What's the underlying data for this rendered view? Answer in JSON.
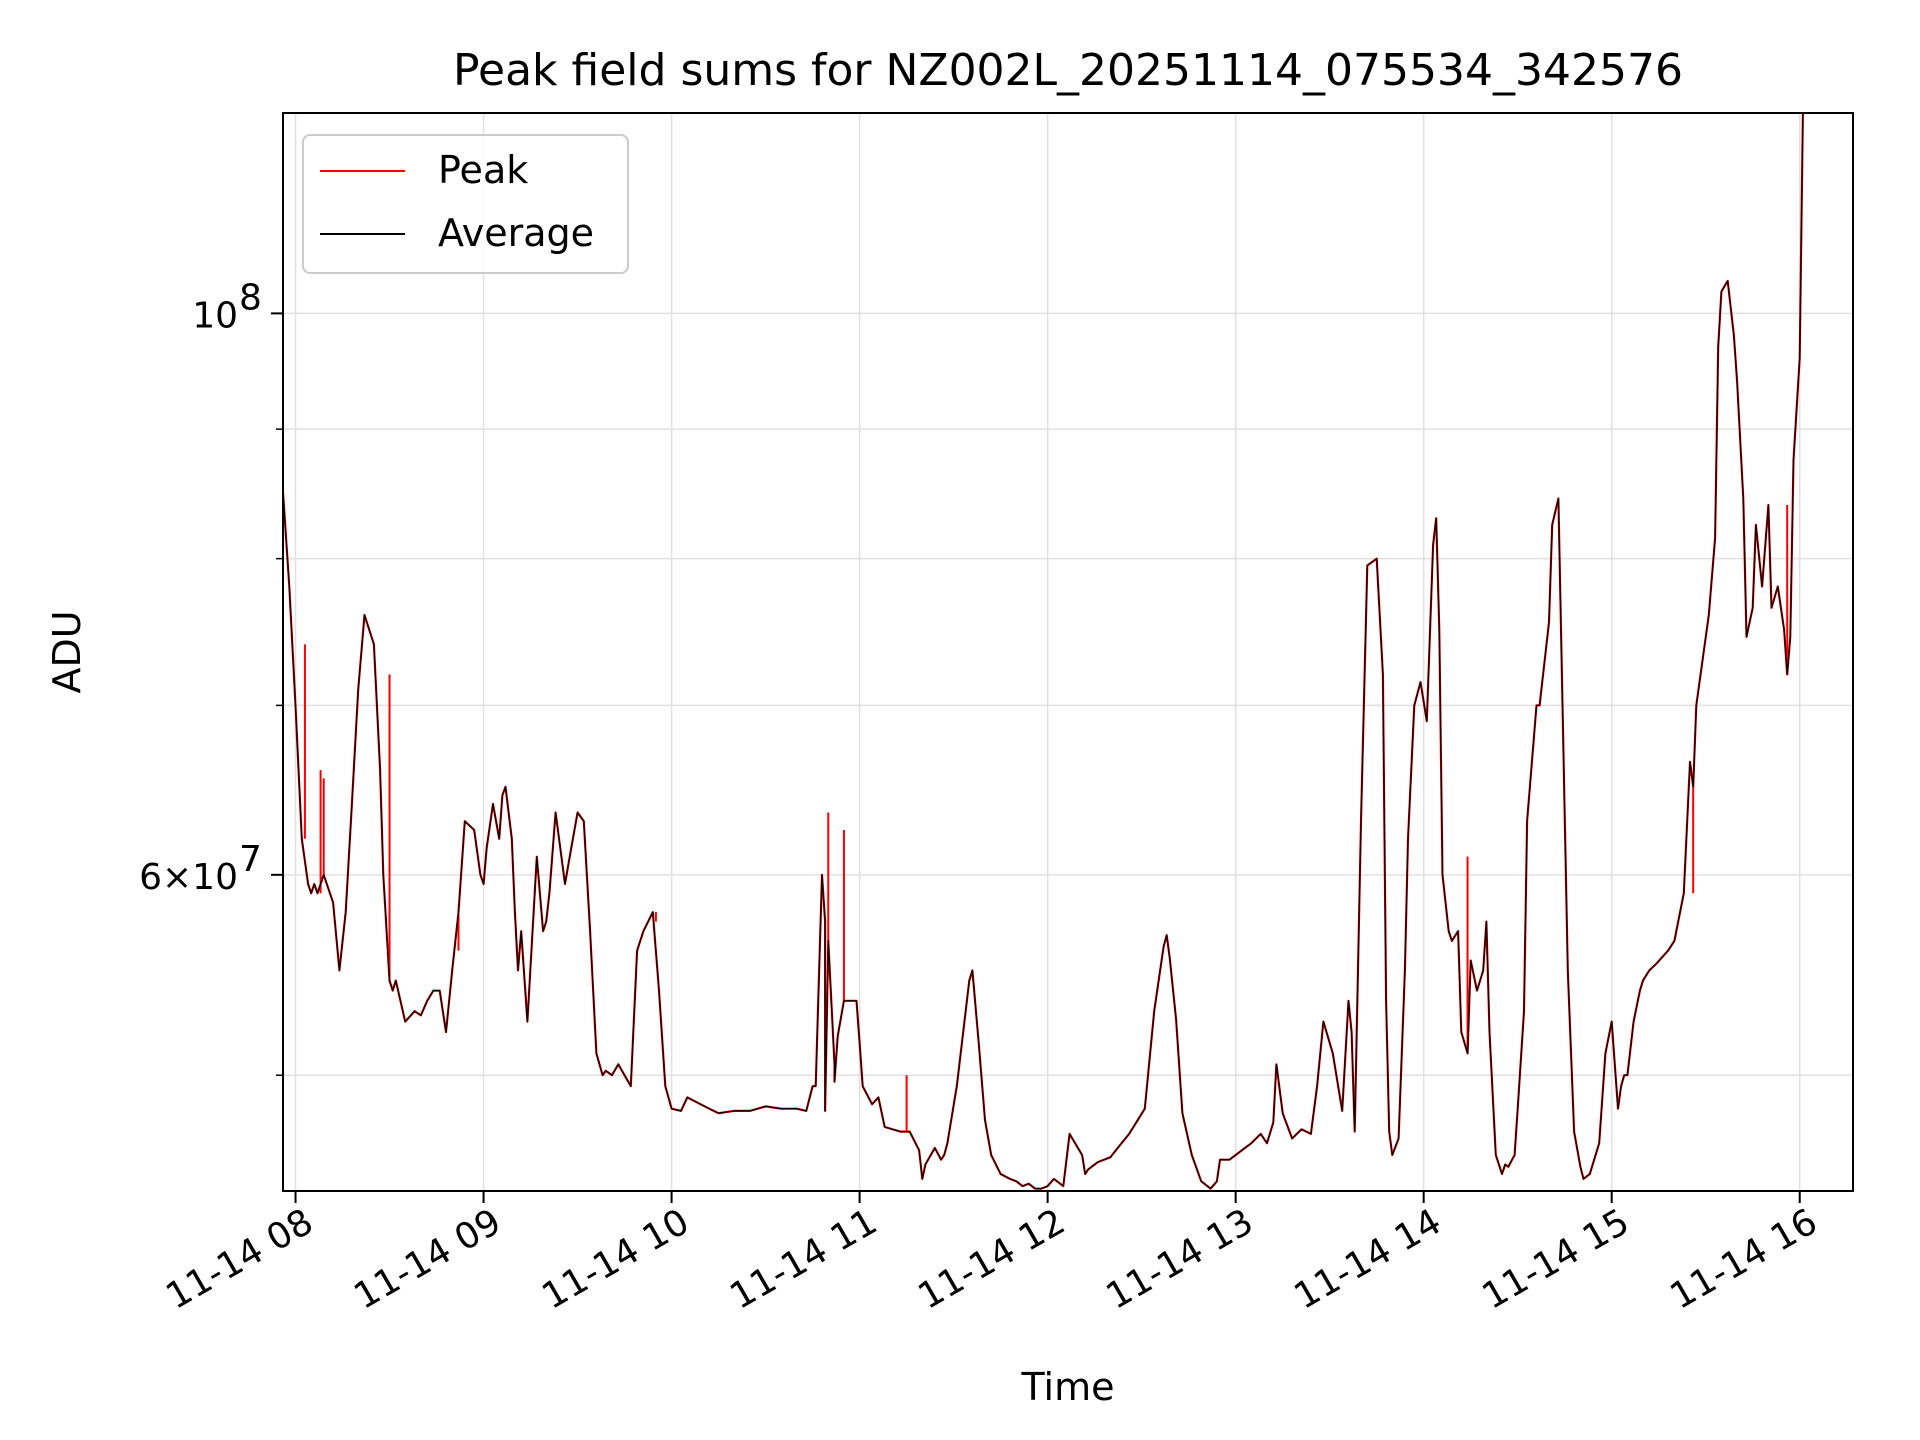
{
  "chart_data": {
    "type": "line",
    "title": "Peak field sums for NZ002L_20251114_075534_342576",
    "xlabel": "Time",
    "ylabel": "ADU",
    "yscale": "log",
    "ylim": [
      45000000,
      120000000
    ],
    "xlim": [
      "2025-11-14T07:56",
      "2025-11-14T16:17"
    ],
    "x_ticks": [
      {
        "label": "11-14 08",
        "value": "2025-11-14T08:00"
      },
      {
        "label": "11-14 09",
        "value": "2025-11-14T09:00"
      },
      {
        "label": "11-14 10",
        "value": "2025-11-14T10:00"
      },
      {
        "label": "11-14 11",
        "value": "2025-11-14T11:00"
      },
      {
        "label": "11-14 12",
        "value": "2025-11-14T12:00"
      },
      {
        "label": "11-14 13",
        "value": "2025-11-14T13:00"
      },
      {
        "label": "11-14 14",
        "value": "2025-11-14T14:00"
      },
      {
        "label": "11-14 15",
        "value": "2025-11-14T15:00"
      },
      {
        "label": "11-14 16",
        "value": "2025-11-14T16:00"
      }
    ],
    "y_ticks_major": [
      {
        "value": 100000000,
        "base": "10",
        "exp": "8"
      },
      {
        "value": 60000000,
        "prefix": "6×10",
        "exp": "7"
      }
    ],
    "y_ticks_minor": [
      50000000,
      70000000,
      80000000,
      90000000
    ],
    "grid": true,
    "legend": {
      "location": "upper-left"
    },
    "series": [
      {
        "name": "Peak",
        "color": "#ff0000",
        "line_width": 1.2,
        "spikes": [
          {
            "t": "2025-11-14T08:03",
            "v": 74000000
          },
          {
            "t": "2025-11-14T08:08",
            "v": 66000000
          },
          {
            "t": "2025-11-14T08:09",
            "v": 65500000
          },
          {
            "t": "2025-11-14T08:30",
            "v": 72000000
          },
          {
            "t": "2025-11-14T08:52",
            "v": 56000000
          },
          {
            "t": "2025-11-14T09:06",
            "v": 64500000
          },
          {
            "t": "2025-11-14T09:55",
            "v": 57500000
          },
          {
            "t": "2025-11-14T10:50",
            "v": 63500000
          },
          {
            "t": "2025-11-14T10:55",
            "v": 62500000
          },
          {
            "t": "2025-11-14T11:15",
            "v": 50000000
          },
          {
            "t": "2025-11-14T14:14",
            "v": 61000000
          },
          {
            "t": "2025-11-14T15:26",
            "v": 59000000
          },
          {
            "t": "2025-11-14T15:56",
            "v": 84000000
          }
        ]
      },
      {
        "name": "Average",
        "color": "#000000",
        "line_width": 1.2
      }
    ],
    "x": [
      "07:56",
      "07:58",
      "08:00",
      "08:02",
      "08:04",
      "08:05",
      "08:06",
      "08:07",
      "08:09",
      "08:12",
      "08:14",
      "08:16",
      "08:18",
      "08:20",
      "08:22",
      "08:25",
      "08:27",
      "08:28",
      "08:30",
      "08:31",
      "08:32",
      "08:35",
      "08:38",
      "08:40",
      "08:42",
      "08:44",
      "08:46",
      "08:48",
      "08:50",
      "08:52",
      "08:54",
      "08:57",
      "08:59",
      "09:00",
      "09:01",
      "09:03",
      "09:05",
      "09:06",
      "09:07",
      "09:09",
      "09:10",
      "09:11",
      "09:12",
      "09:14",
      "09:17",
      "09:19",
      "09:20",
      "09:21",
      "09:23",
      "09:26",
      "09:28",
      "09:30",
      "09:32",
      "09:34",
      "09:36",
      "09:38",
      "09:39",
      "09:41",
      "09:43",
      "09:47",
      "09:49",
      "09:51",
      "09:54",
      "09:56",
      "09:58",
      "10:00",
      "10:03",
      "10:05",
      "10:12",
      "10:15",
      "10:20",
      "10:25",
      "10:30",
      "10:35",
      "10:40",
      "10:43",
      "10:45",
      "10:46",
      "10:48",
      "10:49",
      "10:49",
      "10:50",
      "10:52",
      "10:52",
      "10:53",
      "10:55",
      "10:59",
      "11:00",
      "11:01",
      "11:04",
      "11:06",
      "11:08",
      "11:13",
      "11:16",
      "11:19",
      "11:20",
      "11:21",
      "11:24",
      "11:26",
      "11:27",
      "11:28",
      "11:31",
      "11:35",
      "11:36",
      "11:38",
      "11:40",
      "11:42",
      "11:45",
      "11:48",
      "11:50",
      "11:52",
      "11:54",
      "11:56",
      "11:58",
      "12:00",
      "12:02",
      "12:05",
      "12:07",
      "12:11",
      "12:12",
      "12:13",
      "12:16",
      "12:20",
      "12:23",
      "12:26",
      "12:31",
      "12:34",
      "12:37",
      "12:38",
      "12:39",
      "12:41",
      "12:43",
      "12:46",
      "12:49",
      "12:52",
      "12:54",
      "12:55",
      "12:58",
      "13:00",
      "13:03",
      "13:05",
      "13:08",
      "13:10",
      "13:12",
      "13:13",
      "13:15",
      "13:18",
      "13:21",
      "13:24",
      "13:26",
      "13:28",
      "13:31",
      "13:34",
      "13:36",
      "13:37",
      "13:38",
      "13:40",
      "13:42",
      "13:45",
      "13:47",
      "13:48",
      "13:49",
      "13:50",
      "13:52",
      "13:54",
      "13:55",
      "13:57",
      "13:59",
      "14:01",
      "14:03",
      "14:04",
      "14:05",
      "14:06",
      "14:08",
      "14:09",
      "14:11",
      "14:12",
      "14:14",
      "14:15",
      "14:17",
      "14:19",
      "14:20",
      "14:21",
      "14:23",
      "14:25",
      "14:26",
      "14:27",
      "14:29",
      "14:30",
      "14:32",
      "14:33",
      "14:36",
      "14:37",
      "14:40",
      "14:41",
      "14:43",
      "14:44",
      "14:46",
      "14:48",
      "14:50",
      "14:51",
      "14:53",
      "14:56",
      "14:58",
      "15:00",
      "15:02",
      "15:03",
      "15:04",
      "15:05",
      "15:07",
      "15:09",
      "15:10",
      "15:12",
      "15:14",
      "15:18",
      "15:20",
      "15:23",
      "15:25",
      "15:26",
      "15:27",
      "15:31",
      "15:33",
      "15:34",
      "15:35",
      "15:37",
      "15:39",
      "15:40",
      "15:42",
      "15:43",
      "15:45",
      "15:46",
      "15:48",
      "15:50",
      "15:51",
      "15:53",
      "15:55",
      "15:56",
      "15:57",
      "15:58",
      "16:00",
      "16:01",
      "16:03",
      "16:04",
      "16:06",
      "16:09",
      "16:12",
      "16:14",
      "16:17"
    ],
    "average": [
      85000000,
      78000000,
      70000000,
      62000000,
      59500000,
      59000000,
      59500000,
      59000000,
      60000000,
      58500000,
      55000000,
      58000000,
      64000000,
      71000000,
      76000000,
      74000000,
      66000000,
      60000000,
      54500000,
      54000000,
      54500000,
      52500000,
      53000000,
      52800000,
      53500000,
      54000000,
      54000000,
      52000000,
      55000000,
      58000000,
      63000000,
      62500000,
      60000000,
      59500000,
      61500000,
      64000000,
      62000000,
      64500000,
      65000000,
      62000000,
      58000000,
      55000000,
      57000000,
      52500000,
      61000000,
      57000000,
      57500000,
      59000000,
      63500000,
      59500000,
      61500000,
      63500000,
      63000000,
      57000000,
      51000000,
      50000000,
      50200000,
      50000000,
      50500000,
      49500000,
      56000000,
      57000000,
      58000000,
      54000000,
      49500000,
      48500000,
      48400000,
      49000000,
      48500000,
      48300000,
      48400000,
      48400000,
      48600000,
      48500000,
      48500000,
      48400000,
      49500000,
      49500000,
      60000000,
      57500000,
      48400000,
      56500000,
      50500000,
      49700000,
      51800000,
      53500000,
      53500000,
      51500000,
      49500000,
      48700000,
      49000000,
      47700000,
      47500000,
      47500000,
      46700000,
      45500000,
      46100000,
      46800000,
      46300000,
      46500000,
      47000000,
      49500000,
      54500000,
      55000000,
      51500000,
      48000000,
      46500000,
      45700000,
      45500000,
      45400000,
      45200000,
      45300000,
      45100000,
      45100000,
      45200000,
      45500000,
      45200000,
      47400000,
      46500000,
      45700000,
      45900000,
      46200000,
      46400000,
      46900000,
      47400000,
      48500000,
      53000000,
      56200000,
      56800000,
      55600000,
      52600000,
      48300000,
      46500000,
      45400000,
      45100000,
      45400000,
      46300000,
      46300000,
      46500000,
      46800000,
      47000000,
      47400000,
      47000000,
      47900000,
      50500000,
      48300000,
      47200000,
      47600000,
      47400000,
      49500000,
      52500000,
      51000000,
      48400000,
      53500000,
      52000000,
      47500000,
      63000000,
      79500000,
      80000000,
      72000000,
      53500000,
      47500000,
      46500000,
      47200000,
      55000000,
      62000000,
      70000000,
      71500000,
      69000000,
      81000000,
      83000000,
      75000000,
      60000000,
      57000000,
      56500000,
      57000000,
      52000000,
      51000000,
      55500000,
      54000000,
      55000000,
      57500000,
      52000000,
      46500000,
      45700000,
      46100000,
      46000000,
      46500000,
      48500000,
      53000000,
      63000000,
      70000000,
      70000000,
      75500000,
      82500000,
      84500000,
      73000000,
      55000000,
      47500000,
      46000000,
      45500000,
      45700000,
      47000000,
      51000000,
      52500000,
      48500000,
      49500000,
      50000000,
      50000000,
      52500000,
      54000000,
      54500000,
      55000000,
      55300000,
      56000000,
      56500000,
      59000000,
      66500000,
      65000000,
      70000000,
      76000000,
      81500000,
      97000000,
      102000000,
      103000000,
      98000000,
      94000000,
      84500000,
      74500000,
      76500000,
      82500000,
      78000000,
      84000000,
      76500000,
      78000000,
      75000000,
      72000000,
      74500000,
      87500000,
      96000000,
      120000000
    ]
  },
  "page": {
    "background": "#ffffff",
    "grid_color": "#e0e0e0"
  }
}
